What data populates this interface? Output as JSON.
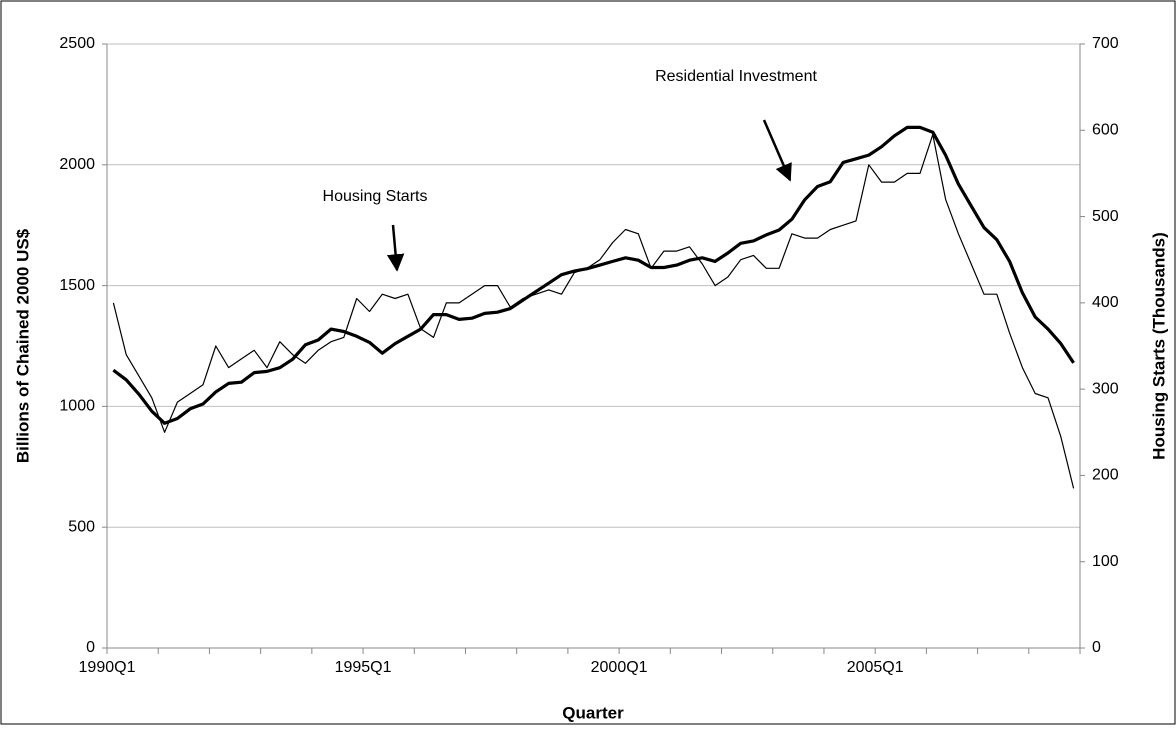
{
  "chart_data": {
    "type": "line",
    "xlabel": "Quarter",
    "ylabel": "Billions of Chained 2000 US$",
    "y2label": "Housing Starts (Thousands)",
    "categories": [
      "1990Q1",
      null,
      null,
      null,
      null,
      null,
      null,
      null,
      null,
      null,
      null,
      null,
      null,
      null,
      null,
      null,
      null,
      null,
      null,
      null,
      "1995Q1",
      null,
      null,
      null,
      null,
      null,
      null,
      null,
      null,
      null,
      null,
      null,
      null,
      null,
      null,
      null,
      null,
      null,
      null,
      null,
      "2000Q1",
      null,
      null,
      null,
      null,
      null,
      null,
      null,
      null,
      null,
      null,
      null,
      null,
      null,
      null,
      null,
      null,
      null,
      null,
      null,
      "2005Q1",
      null,
      null,
      null,
      null,
      null,
      null,
      null,
      null,
      null,
      null,
      null,
      null,
      null,
      null,
      null
    ],
    "series": [
      {
        "name": "Residential Investment",
        "color": "#000000",
        "line_width": 3.2,
        "values": [
          1150,
          1110,
          1050,
          980,
          930,
          950,
          990,
          1010,
          1060,
          1095,
          1100,
          1140,
          1145,
          1160,
          1195,
          1255,
          1275,
          1320,
          1310,
          1290,
          1265,
          1220,
          1260,
          1290,
          1320,
          1380,
          1380,
          1360,
          1365,
          1385,
          1390,
          1405,
          1440,
          1475,
          1510,
          1545,
          1560,
          1570,
          1585,
          1600,
          1615,
          1605,
          1575,
          1575,
          1585,
          1605,
          1615,
          1600,
          1635,
          1675,
          1685,
          1710,
          1730,
          1775,
          1855,
          1910,
          1930,
          2010,
          2025,
          2040,
          2075,
          2120,
          2155,
          2155,
          2135,
          2040,
          1920,
          1830,
          1740,
          1690,
          1600,
          1470,
          1370,
          1320,
          1260,
          1180
        ]
      },
      {
        "name": "Housing Starts",
        "color": "#000000",
        "line_width": 1.2,
        "axis": "y2",
        "values": [
          400,
          340,
          315,
          290,
          250,
          285,
          295,
          305,
          350,
          325,
          335,
          345,
          325,
          355,
          340,
          330,
          345,
          355,
          360,
          405,
          390,
          410,
          405,
          410,
          370,
          360,
          400,
          400,
          410,
          420,
          420,
          395,
          405,
          410,
          415,
          410,
          435,
          440,
          450,
          470,
          485,
          480,
          440,
          460,
          460,
          465,
          445,
          420,
          430,
          450,
          455,
          440,
          440,
          480,
          475,
          475,
          485,
          490,
          495,
          560,
          540,
          540,
          550,
          550,
          595,
          520,
          480,
          445,
          410,
          410,
          365,
          325,
          295,
          290,
          245,
          185
        ]
      }
    ],
    "ylim": [
      0,
      2500
    ],
    "yticks": [
      0,
      500,
      1000,
      1500,
      2000,
      2500
    ],
    "y2lim": [
      0,
      700
    ],
    "y2ticks": [
      0,
      100,
      200,
      300,
      400,
      500,
      600,
      700
    ],
    "grid": true
  }
}
